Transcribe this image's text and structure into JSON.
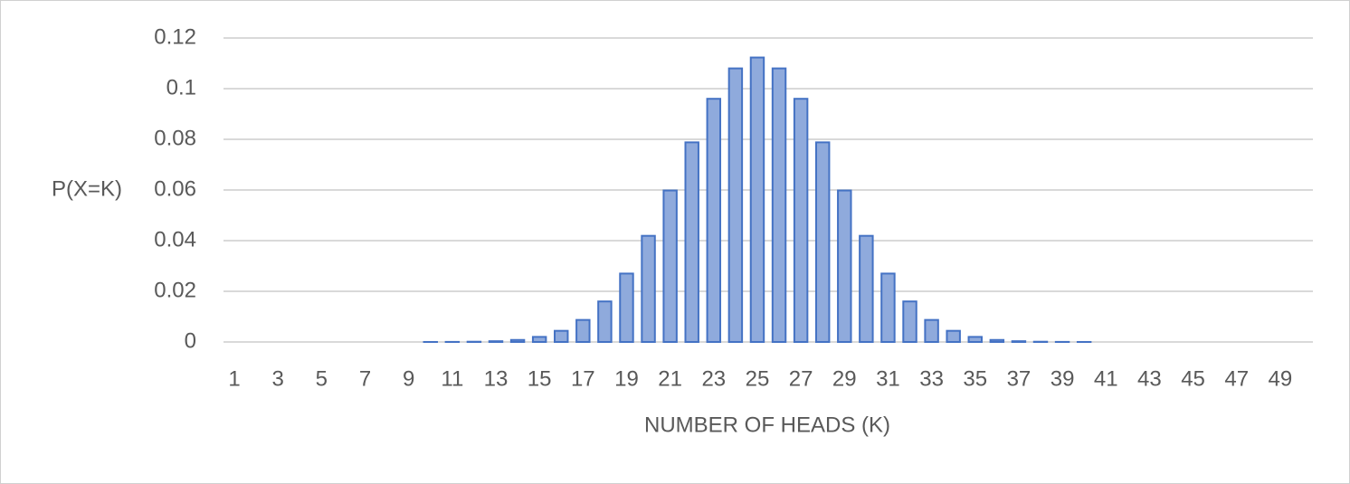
{
  "chart_data": {
    "type": "bar",
    "x_label": "NUMBER OF HEADS (K)",
    "y_label": "P(X=K)",
    "categories": [
      1,
      null,
      3,
      null,
      5,
      null,
      7,
      null,
      9,
      null,
      11,
      null,
      13,
      null,
      15,
      null,
      17,
      null,
      19,
      null,
      21,
      null,
      23,
      null,
      25,
      null,
      27,
      null,
      29,
      null,
      31,
      null,
      33,
      null,
      35,
      null,
      37,
      null,
      39,
      null,
      41,
      null,
      43,
      null,
      45,
      null,
      47,
      null,
      49,
      null
    ],
    "values": [
      0,
      0,
      0,
      0,
      0,
      0,
      0,
      0,
      0,
      1e-05,
      3e-05,
      0.0001,
      0.0003,
      0.0008,
      0.002,
      0.0044,
      0.0087,
      0.016,
      0.027,
      0.0419,
      0.0598,
      0.0788,
      0.096,
      0.108,
      0.1123,
      0.108,
      0.096,
      0.0788,
      0.0598,
      0.0419,
      0.027,
      0.016,
      0.0087,
      0.0044,
      0.002,
      0.0008,
      0.0003,
      0.0001,
      3e-05,
      1e-05,
      0,
      0,
      0,
      0,
      0,
      0,
      0,
      0,
      0,
      0
    ],
    "color": "#8faadc",
    "edge_color": "#4472c4",
    "ylim": [
      0,
      0.12
    ],
    "yticks": [
      0,
      0.02,
      0.04,
      0.06,
      0.08,
      0.1,
      0.12
    ],
    "grid": true
  }
}
